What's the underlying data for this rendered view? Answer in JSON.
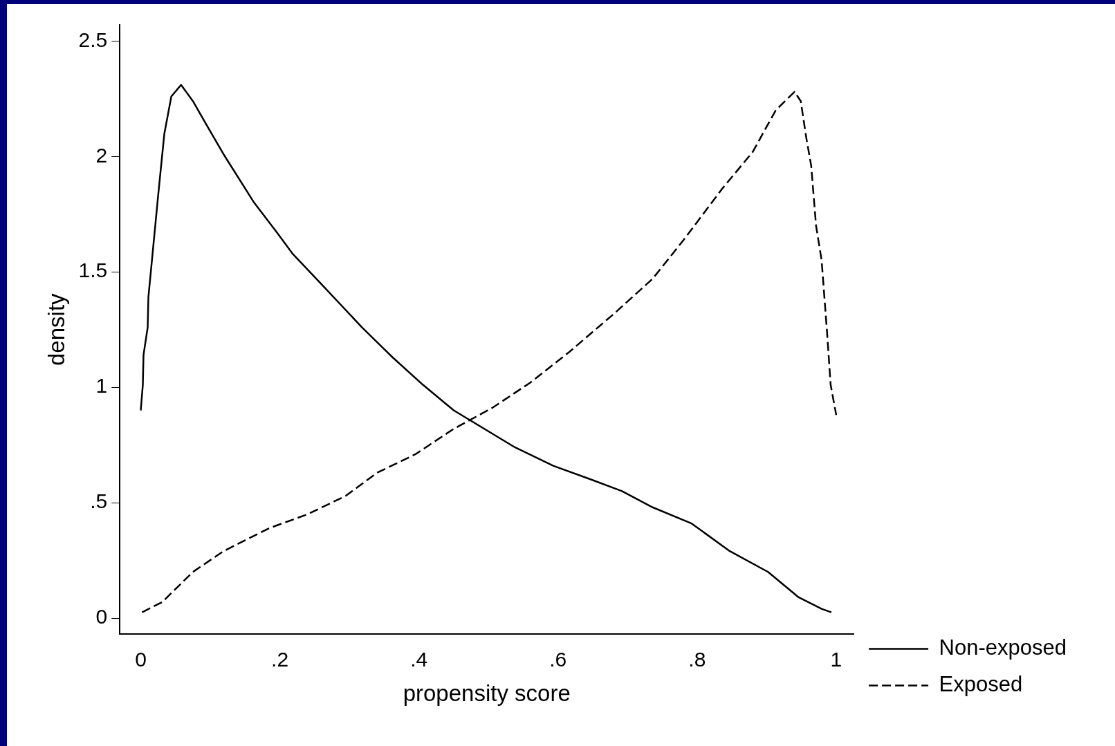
{
  "chart_data": {
    "type": "line",
    "xlabel": "propensity score",
    "ylabel": "density",
    "xlim": [
      -0.03,
      1.025
    ],
    "ylim": [
      -0.07,
      2.57
    ],
    "xticks": [
      0,
      {
        "value": 0.2,
        "label": ".2"
      },
      {
        "value": 0.4,
        "label": ".4"
      },
      {
        "value": 0.6,
        "label": ".6"
      },
      {
        "value": 0.8,
        "label": ".8"
      },
      1
    ],
    "yticks": [
      0,
      {
        "value": 0.5,
        "label": ".5"
      },
      1,
      1.5,
      2,
      2.5
    ],
    "grid": false,
    "legend": "right",
    "marker": "none",
    "series": [
      {
        "name": "Non-exposed",
        "color": "#000000",
        "line_style": "solid",
        "x": [
          0,
          0.003,
          0.004,
          0.01,
          0.011,
          0.018,
          0.025,
          0.034,
          0.044,
          0.058,
          0.075,
          0.092,
          0.119,
          0.163,
          0.196,
          0.218,
          0.262,
          0.318,
          0.362,
          0.406,
          0.45,
          0.494,
          0.538,
          0.593,
          0.648,
          0.692,
          0.736,
          0.792,
          0.847,
          0.902,
          0.946,
          0.979,
          0.993
        ],
        "values": [
          0.9,
          1.01,
          1.14,
          1.26,
          1.39,
          1.61,
          1.83,
          2.1,
          2.26,
          2.31,
          2.24,
          2.15,
          2.01,
          1.8,
          1.67,
          1.58,
          1.44,
          1.26,
          1.13,
          1.01,
          0.9,
          0.82,
          0.74,
          0.66,
          0.6,
          0.55,
          0.48,
          0.41,
          0.29,
          0.2,
          0.09,
          0.04,
          0.025
        ]
      },
      {
        "name": "Exposed",
        "color": "#000000",
        "line_style": "dashed",
        "x": [
          0.002,
          0.031,
          0.075,
          0.119,
          0.185,
          0.24,
          0.295,
          0.34,
          0.395,
          0.45,
          0.505,
          0.56,
          0.615,
          0.681,
          0.736,
          0.781,
          0.836,
          0.88,
          0.913,
          0.94,
          0.949,
          0.957,
          0.964,
          0.971,
          0.979,
          0.987,
          0.992,
          1
        ],
        "values": [
          0.025,
          0.07,
          0.2,
          0.29,
          0.39,
          0.45,
          0.53,
          0.63,
          0.71,
          0.82,
          0.91,
          1.02,
          1.15,
          1.32,
          1.47,
          1.64,
          1.86,
          2.02,
          2.2,
          2.28,
          2.24,
          2.08,
          1.96,
          1.7,
          1.55,
          1.23,
          1.01,
          0.88
        ]
      }
    ]
  }
}
